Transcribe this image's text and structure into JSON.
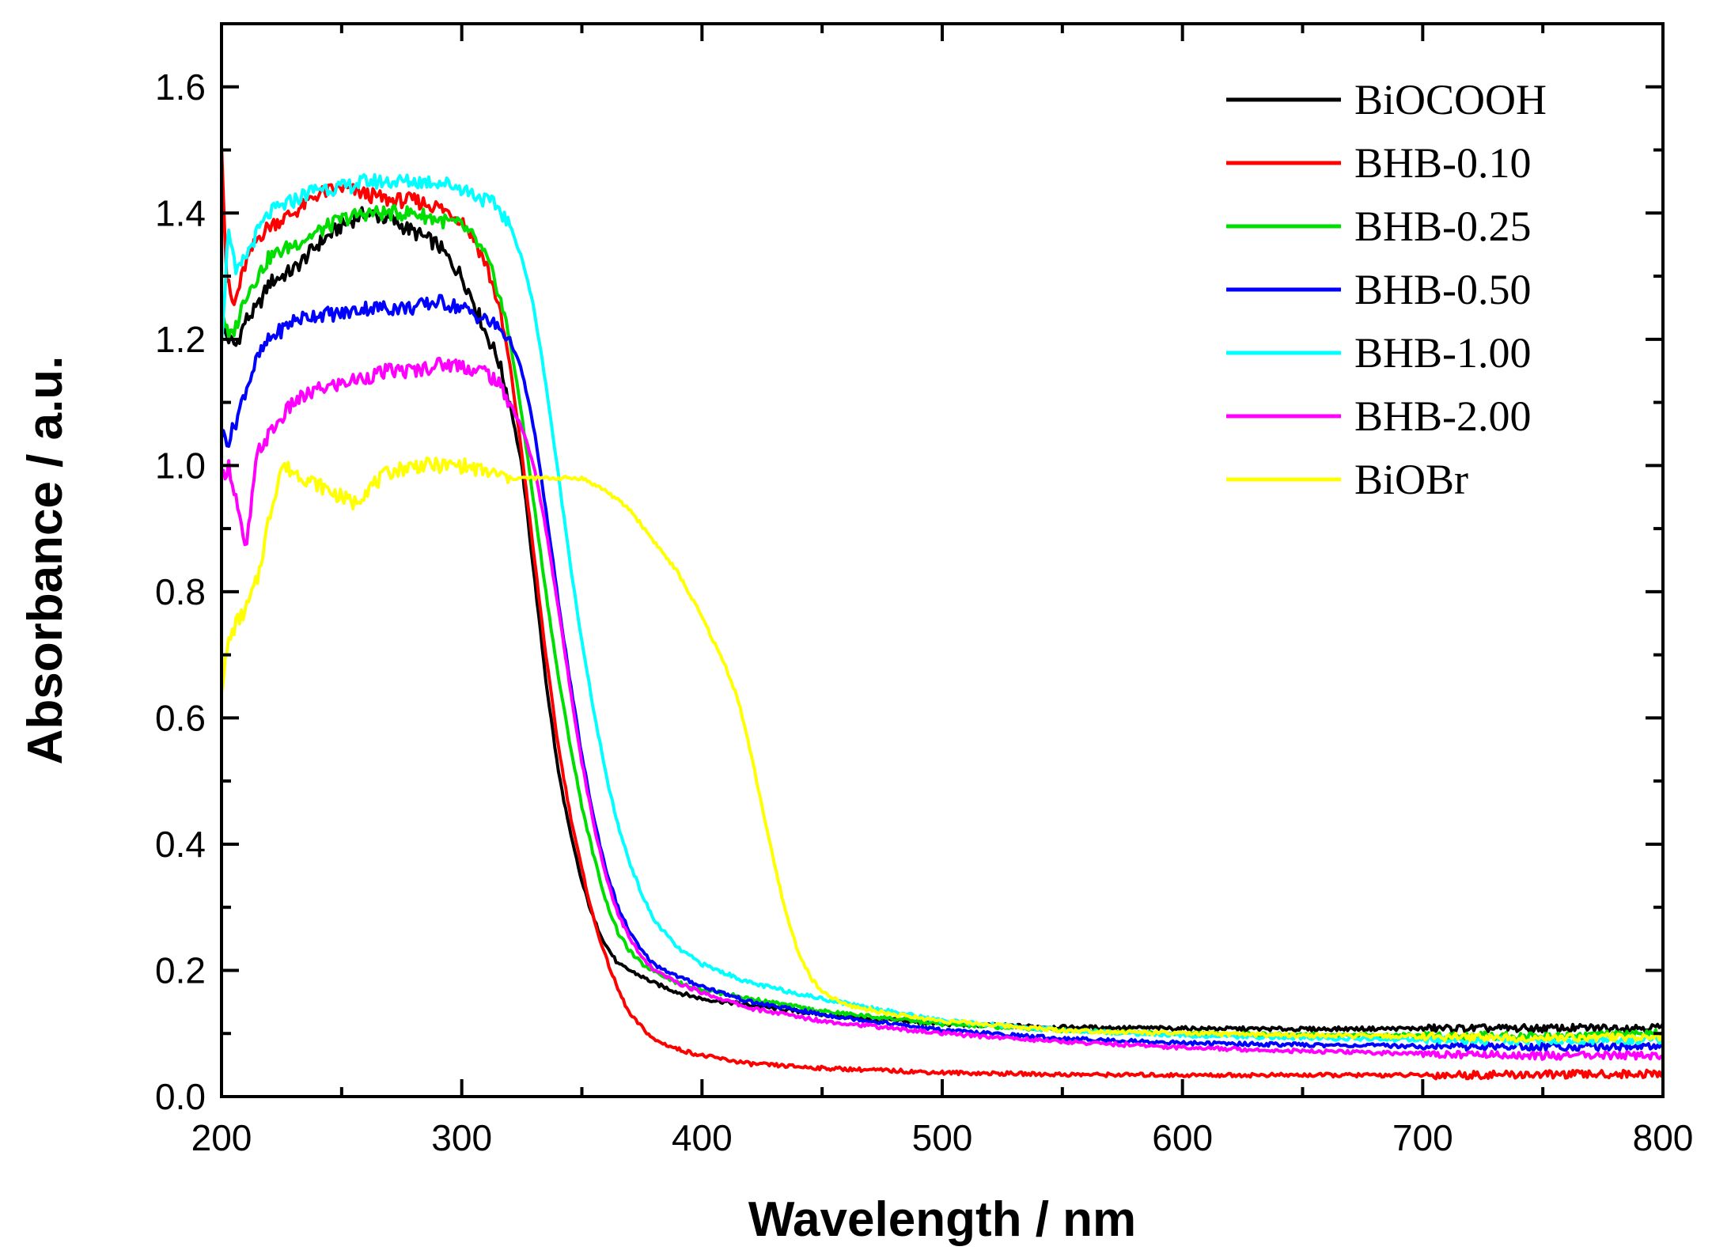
{
  "chart_data": {
    "type": "line",
    "title": "",
    "xlabel": "Wavelength / nm",
    "ylabel": "Absorbance / a.u.",
    "xlim": [
      200,
      800
    ],
    "ylim": [
      0.0,
      1.7
    ],
    "xticks": [
      200,
      300,
      400,
      500,
      600,
      700,
      800
    ],
    "xtick_labels": [
      "200",
      "300",
      "400",
      "500",
      "600",
      "700",
      "800"
    ],
    "yticks": [
      0.0,
      0.2,
      0.4,
      0.6,
      0.8,
      1.0,
      1.2,
      1.4,
      1.6
    ],
    "ytick_labels": [
      "0.0",
      "0.2",
      "0.4",
      "0.6",
      "0.8",
      "1.0",
      "1.2",
      "1.4",
      "1.6"
    ],
    "grid": false,
    "legend_position": "top-right",
    "series": [
      {
        "name": "BiOCOOH",
        "color": "#000000",
        "x": [
          200,
          203,
          206,
          210,
          215,
          220,
          230,
          240,
          250,
          260,
          270,
          280,
          290,
          300,
          305,
          310,
          315,
          320,
          325,
          330,
          335,
          340,
          345,
          350,
          355,
          360,
          365,
          370,
          375,
          380,
          390,
          400,
          420,
          450,
          500,
          550,
          600,
          650,
          700,
          750,
          800
        ],
        "y": [
          1.22,
          1.2,
          1.19,
          1.23,
          1.25,
          1.29,
          1.31,
          1.35,
          1.38,
          1.4,
          1.39,
          1.37,
          1.35,
          1.3,
          1.26,
          1.21,
          1.17,
          1.1,
          1.0,
          0.83,
          0.66,
          0.52,
          0.42,
          0.34,
          0.28,
          0.24,
          0.21,
          0.2,
          0.19,
          0.18,
          0.165,
          0.155,
          0.145,
          0.13,
          0.115,
          0.11,
          0.108,
          0.107,
          0.108,
          0.108,
          0.11
        ]
      },
      {
        "name": "BHB-0.10",
        "color": "#ff0000",
        "x": [
          200,
          202,
          205,
          210,
          215,
          220,
          230,
          240,
          250,
          260,
          270,
          280,
          290,
          300,
          305,
          310,
          315,
          320,
          325,
          330,
          335,
          340,
          345,
          350,
          355,
          360,
          365,
          370,
          375,
          380,
          390,
          400,
          420,
          450,
          500,
          550,
          600,
          650,
          700,
          750,
          800
        ],
        "y": [
          1.52,
          1.3,
          1.25,
          1.32,
          1.36,
          1.38,
          1.4,
          1.43,
          1.44,
          1.43,
          1.42,
          1.42,
          1.41,
          1.39,
          1.36,
          1.32,
          1.26,
          1.16,
          1.02,
          0.86,
          0.7,
          0.56,
          0.45,
          0.36,
          0.28,
          0.22,
          0.17,
          0.13,
          0.11,
          0.09,
          0.075,
          0.065,
          0.052,
          0.045,
          0.038,
          0.035,
          0.034,
          0.034,
          0.034,
          0.035,
          0.036
        ]
      },
      {
        "name": "BHB-0.25",
        "color": "#00dd00",
        "x": [
          200,
          203,
          206,
          210,
          215,
          220,
          230,
          240,
          250,
          260,
          270,
          280,
          290,
          300,
          305,
          310,
          315,
          320,
          325,
          330,
          335,
          340,
          345,
          350,
          355,
          360,
          365,
          370,
          375,
          380,
          390,
          400,
          420,
          450,
          500,
          550,
          600,
          650,
          700,
          750,
          800
        ],
        "y": [
          1.25,
          1.2,
          1.22,
          1.27,
          1.3,
          1.33,
          1.35,
          1.37,
          1.39,
          1.4,
          1.4,
          1.4,
          1.39,
          1.38,
          1.36,
          1.33,
          1.28,
          1.2,
          1.08,
          0.94,
          0.8,
          0.67,
          0.56,
          0.46,
          0.38,
          0.31,
          0.26,
          0.23,
          0.21,
          0.2,
          0.18,
          0.17,
          0.155,
          0.135,
          0.115,
          0.105,
          0.1,
          0.098,
          0.097,
          0.096,
          0.1
        ]
      },
      {
        "name": "BHB-0.50",
        "color": "#0000ff",
        "x": [
          200,
          203,
          206,
          210,
          215,
          220,
          230,
          240,
          250,
          260,
          270,
          280,
          290,
          300,
          305,
          310,
          315,
          320,
          325,
          330,
          335,
          340,
          345,
          350,
          355,
          360,
          365,
          370,
          375,
          380,
          390,
          400,
          420,
          450,
          500,
          550,
          600,
          650,
          700,
          750,
          800
        ],
        "y": [
          1.05,
          1.04,
          1.07,
          1.12,
          1.17,
          1.2,
          1.23,
          1.24,
          1.24,
          1.25,
          1.25,
          1.25,
          1.26,
          1.25,
          1.24,
          1.23,
          1.22,
          1.2,
          1.15,
          1.06,
          0.93,
          0.79,
          0.66,
          0.54,
          0.44,
          0.36,
          0.3,
          0.26,
          0.23,
          0.21,
          0.19,
          0.175,
          0.15,
          0.13,
          0.105,
          0.092,
          0.085,
          0.082,
          0.08,
          0.079,
          0.08
        ]
      },
      {
        "name": "BHB-1.00",
        "color": "#00ffff",
        "x": [
          200,
          203,
          206,
          210,
          215,
          220,
          230,
          240,
          250,
          260,
          270,
          280,
          290,
          300,
          305,
          310,
          315,
          320,
          325,
          330,
          335,
          340,
          345,
          350,
          355,
          360,
          365,
          370,
          375,
          380,
          390,
          400,
          420,
          450,
          500,
          550,
          600,
          650,
          700,
          750,
          800
        ],
        "y": [
          1.2,
          1.38,
          1.3,
          1.33,
          1.37,
          1.4,
          1.42,
          1.44,
          1.44,
          1.45,
          1.45,
          1.45,
          1.45,
          1.44,
          1.43,
          1.42,
          1.41,
          1.38,
          1.33,
          1.25,
          1.13,
          0.99,
          0.85,
          0.72,
          0.61,
          0.51,
          0.43,
          0.37,
          0.32,
          0.28,
          0.235,
          0.21,
          0.18,
          0.155,
          0.12,
          0.105,
          0.097,
          0.093,
          0.09,
          0.088,
          0.09
        ]
      },
      {
        "name": "BHB-2.00",
        "color": "#ff00ff",
        "x": [
          200,
          203,
          206,
          210,
          215,
          220,
          230,
          240,
          250,
          260,
          270,
          280,
          290,
          300,
          305,
          310,
          315,
          320,
          325,
          330,
          335,
          340,
          345,
          350,
          355,
          360,
          365,
          370,
          375,
          380,
          390,
          400,
          420,
          450,
          500,
          550,
          600,
          650,
          700,
          750,
          800
        ],
        "y": [
          0.98,
          1.0,
          0.95,
          0.86,
          1.02,
          1.05,
          1.1,
          1.12,
          1.13,
          1.14,
          1.15,
          1.15,
          1.16,
          1.16,
          1.15,
          1.15,
          1.13,
          1.1,
          1.06,
          1.0,
          0.9,
          0.78,
          0.65,
          0.53,
          0.43,
          0.35,
          0.29,
          0.25,
          0.22,
          0.2,
          0.18,
          0.165,
          0.14,
          0.12,
          0.1,
          0.087,
          0.078,
          0.072,
          0.068,
          0.065,
          0.065
        ]
      },
      {
        "name": "BiOBr",
        "color": "#ffff00",
        "x": [
          200,
          203,
          206,
          210,
          215,
          220,
          225,
          230,
          240,
          250,
          255,
          260,
          270,
          280,
          290,
          300,
          310,
          320,
          330,
          340,
          350,
          360,
          370,
          380,
          390,
          400,
          410,
          415,
          420,
          425,
          430,
          435,
          440,
          445,
          450,
          460,
          480,
          500,
          550,
          600,
          650,
          700,
          750,
          800
        ],
        "y": [
          0.65,
          0.72,
          0.75,
          0.77,
          0.82,
          0.92,
          1.0,
          0.99,
          0.97,
          0.95,
          0.94,
          0.96,
          0.99,
          1.0,
          1.0,
          1.0,
          0.99,
          0.98,
          0.98,
          0.98,
          0.98,
          0.96,
          0.93,
          0.88,
          0.83,
          0.76,
          0.68,
          0.63,
          0.55,
          0.46,
          0.37,
          0.29,
          0.23,
          0.19,
          0.165,
          0.145,
          0.13,
          0.12,
          0.105,
          0.1,
          0.097,
          0.095,
          0.093,
          0.095
        ]
      }
    ]
  }
}
